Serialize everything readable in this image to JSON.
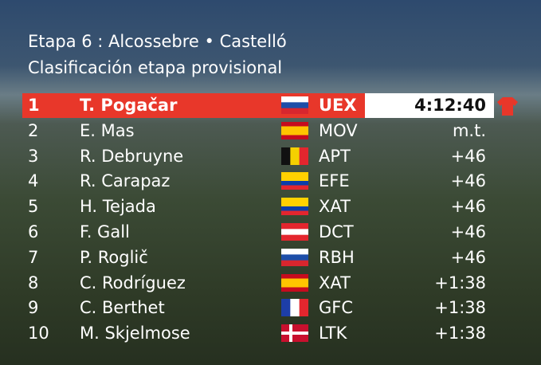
{
  "header": {
    "line1": "Etapa 6 : Alcossebre • Castelló",
    "line2": "Clasificación etapa provisional"
  },
  "table": {
    "rows": [
      [
        "1",
        "T. Pogačar",
        "UEX",
        "4:12:40"
      ],
      [
        "2",
        "E. Mas",
        "MOV",
        "m.t."
      ],
      [
        "3",
        "R. Debruyne",
        "APT",
        "+46"
      ],
      [
        "4",
        "R. Carapaz",
        "EFE",
        "+46"
      ],
      [
        "5",
        "H. Tejada",
        "XAT",
        "+46"
      ],
      [
        "6",
        "F. Gall",
        "DCT",
        "+46"
      ],
      [
        "7",
        "P. Roglič",
        "RBH",
        "+46"
      ],
      [
        "8",
        "C. Rodríguez",
        "XAT",
        "+1:38"
      ],
      [
        "9",
        "C. Berthet",
        "GFC",
        "+1:38"
      ],
      [
        "10",
        "M. Skjelmose",
        "LTK",
        "+1:38"
      ]
    ]
  }
}
